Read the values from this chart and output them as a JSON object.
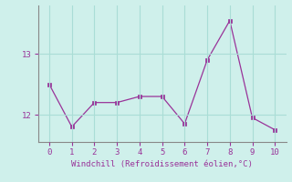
{
  "x": [
    0,
    1,
    2,
    3,
    4,
    5,
    6,
    7,
    8,
    9,
    10
  ],
  "y": [
    12.5,
    11.8,
    12.2,
    12.2,
    12.3,
    12.3,
    11.85,
    12.9,
    13.55,
    11.95,
    11.75
  ],
  "line_color": "#993399",
  "marker": "s",
  "marker_size": 2.5,
  "bg_color": "#cff0eb",
  "grid_color": "#aaddd6",
  "xlabel": "Windchill (Refroidissement éolien,°C)",
  "xlabel_color": "#993399",
  "tick_color": "#993399",
  "spine_color": "#888888",
  "ylabel_ticks": [
    12,
    13
  ],
  "xticks": [
    0,
    1,
    2,
    3,
    4,
    5,
    6,
    7,
    8,
    9,
    10
  ],
  "xlim": [
    -0.5,
    10.5
  ],
  "ylim": [
    11.55,
    13.8
  ]
}
